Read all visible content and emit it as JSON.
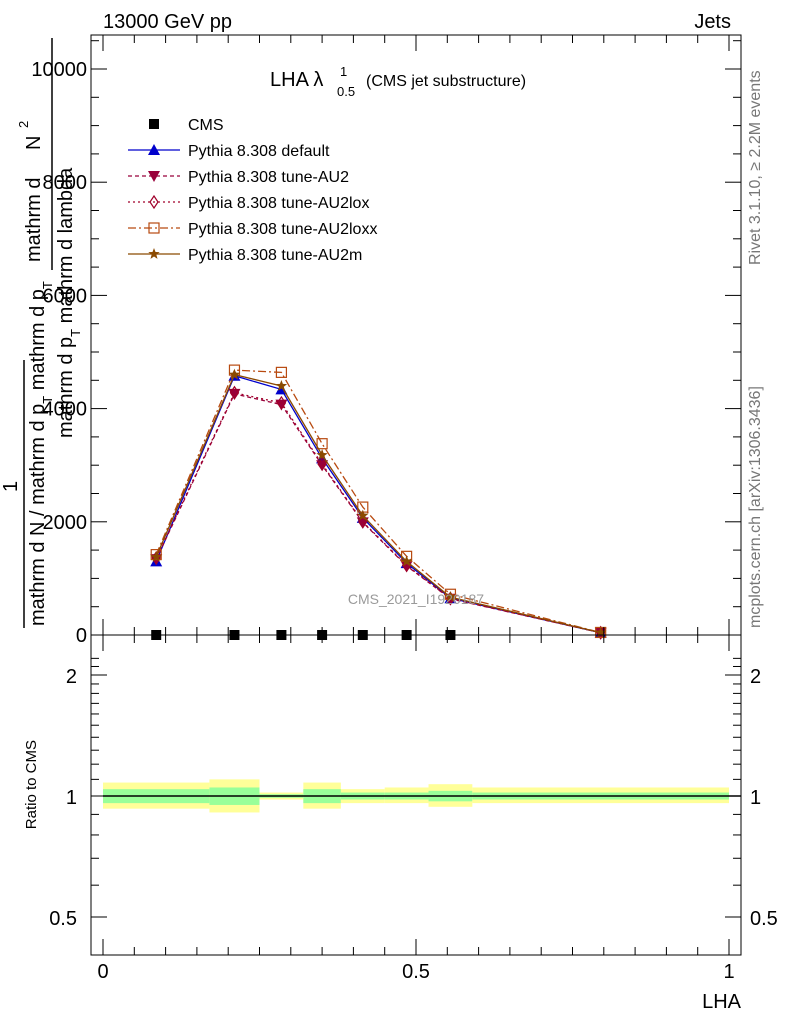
{
  "header": {
    "left": "13000 GeV pp",
    "right": "Jets",
    "side_top": "Rivet 3.1.10, ≥ 2.2M events",
    "side_bottom": "mcplots.cern.ch [arXiv:1306.3436]"
  },
  "plot_title": {
    "main": "LHA λ",
    "sup": "1",
    "sub": "0.5",
    "paren": "(CMS jet substructure)"
  },
  "watermark": "CMS_2021_I1920187",
  "y_axis_label": {
    "numer_top": "mathrm d",
    "numer_sup": "2",
    "numer_mid": "N",
    "denom": "mathrm d p",
    "denom_sub": "T",
    "denom_tail": " mathrm d lambda",
    "front_numer": "1",
    "front_denom": "mathrm d N / mathrm d p",
    "front_denom_sub": "T",
    "front_denom_tail": " mathrm d p",
    "front_denom_sub2": "T"
  },
  "ratio_ylabel": "Ratio to CMS",
  "xlabel": "LHA",
  "colors": {
    "cms": "#000000",
    "default": "#0000cc",
    "au2": "#99003a",
    "au2lox": "#a0002a",
    "au2loxx": "#b84a10",
    "au2m": "#8b4a00",
    "band_yellow": "#ffff99",
    "band_green": "#99ff99"
  },
  "legend": [
    {
      "label": "CMS",
      "marker": "square-filled",
      "color_key": "cms",
      "dash": ""
    },
    {
      "label": "Pythia 8.308 default",
      "marker": "triangle-up",
      "color_key": "default",
      "dash": ""
    },
    {
      "label": "Pythia 8.308 tune-AU2",
      "marker": "triangle-down",
      "color_key": "au2",
      "dash": "4,3"
    },
    {
      "label": "Pythia 8.308 tune-AU2lox",
      "marker": "diamond-open",
      "color_key": "au2lox",
      "dash": "2,3"
    },
    {
      "label": "Pythia 8.308 tune-AU2loxx",
      "marker": "square-open",
      "color_key": "au2loxx",
      "dash": "8,3,2,3"
    },
    {
      "label": "Pythia 8.308 tune-AU2m",
      "marker": "star",
      "color_key": "au2m",
      "dash": ""
    }
  ],
  "chart_data": {
    "type": "line",
    "xlabel": "LHA",
    "ylabel": "mathrm d N / mathrm d p_T mathrm d lambda",
    "xlim": [
      -0.02,
      1.02
    ],
    "ylim": [
      0,
      10600
    ],
    "y_ticks": [
      0,
      2000,
      4000,
      6000,
      8000,
      10000
    ],
    "y_tick_labels": [
      "0",
      "2000",
      "4000",
      "6000",
      "8000",
      "10000"
    ],
    "x_ticks": [
      0,
      0.5,
      1
    ],
    "x_tick_labels": [
      "0",
      "0.5",
      "1"
    ],
    "x": [
      0.085,
      0.21,
      0.285,
      0.35,
      0.415,
      0.485,
      0.555,
      0.795
    ],
    "series": [
      {
        "name": "CMS",
        "key": "cms",
        "x": [
          0.085,
          0.21,
          0.285,
          0.35,
          0.415,
          0.485,
          0.555
        ],
        "values": [
          0,
          0,
          0,
          0,
          0,
          0,
          0
        ]
      },
      {
        "name": "Pythia 8.308 default",
        "key": "default",
        "values": [
          1300,
          4580,
          4340,
          3120,
          2070,
          1270,
          650,
          40
        ]
      },
      {
        "name": "Pythia 8.308 tune-AU2",
        "key": "au2",
        "values": [
          1340,
          4260,
          4070,
          3000,
          1990,
          1220,
          640,
          40
        ]
      },
      {
        "name": "Pythia 8.308 tune-AU2lox",
        "key": "au2lox",
        "values": [
          1360,
          4280,
          4100,
          3020,
          2000,
          1230,
          645,
          40
        ]
      },
      {
        "name": "Pythia 8.308 tune-AU2loxx",
        "key": "au2loxx",
        "values": [
          1420,
          4680,
          4640,
          3380,
          2260,
          1390,
          720,
          45
        ]
      },
      {
        "name": "Pythia 8.308 tune-AU2m",
        "key": "au2m",
        "values": [
          1380,
          4600,
          4400,
          3180,
          2110,
          1300,
          670,
          42
        ]
      }
    ],
    "ratio": {
      "ylabel": "Ratio to CMS",
      "y_ticks": [
        0.5,
        1,
        2
      ],
      "y_tick_labels": [
        "0.5",
        "1",
        "2"
      ],
      "ylim_log": [
        0.4,
        2.35
      ],
      "bins": [
        {
          "x0": 0.0,
          "x1": 0.17,
          "yellow": [
            0.93,
            1.08
          ],
          "green": [
            0.96,
            1.04
          ]
        },
        {
          "x0": 0.17,
          "x1": 0.25,
          "yellow": [
            0.91,
            1.1
          ],
          "green": [
            0.95,
            1.05
          ]
        },
        {
          "x0": 0.25,
          "x1": 0.32,
          "yellow": [
            0.98,
            1.02
          ],
          "green": [
            0.99,
            1.01
          ]
        },
        {
          "x0": 0.32,
          "x1": 0.38,
          "yellow": [
            0.93,
            1.08
          ],
          "green": [
            0.96,
            1.04
          ]
        },
        {
          "x0": 0.38,
          "x1": 0.45,
          "yellow": [
            0.96,
            1.04
          ],
          "green": [
            0.98,
            1.02
          ]
        },
        {
          "x0": 0.45,
          "x1": 0.52,
          "yellow": [
            0.96,
            1.05
          ],
          "green": [
            0.98,
            1.02
          ]
        },
        {
          "x0": 0.52,
          "x1": 0.59,
          "yellow": [
            0.94,
            1.07
          ],
          "green": [
            0.97,
            1.03
          ]
        },
        {
          "x0": 0.59,
          "x1": 1.0,
          "yellow": [
            0.96,
            1.05
          ],
          "green": [
            0.98,
            1.02
          ]
        }
      ]
    }
  }
}
